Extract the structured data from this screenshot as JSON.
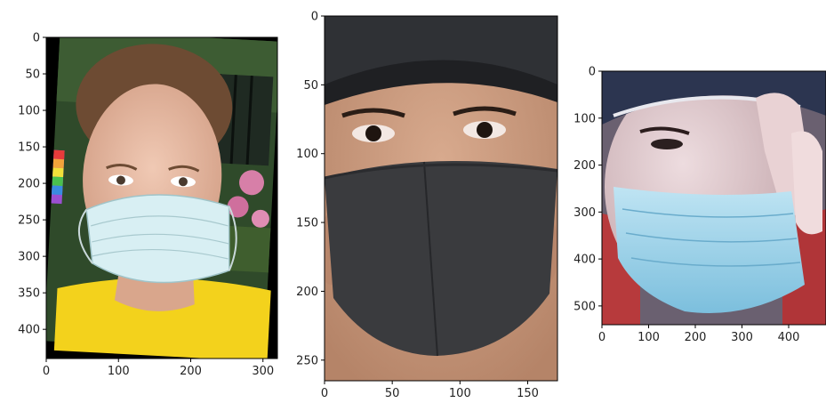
{
  "chart_data": [
    {
      "type": "image",
      "panel": "left",
      "xlim": [
        0,
        320
      ],
      "ylim": [
        440,
        0
      ],
      "xticks": [
        0,
        100,
        200,
        300
      ],
      "yticks": [
        0,
        50,
        100,
        150,
        200,
        250,
        300,
        350,
        400
      ],
      "image": {
        "description_colors": {
          "skin": "#e2b6a0",
          "hair": "#6b4a32",
          "mask": "#d6eef2",
          "shirt": "#f2d21a",
          "background": "#2e4a28",
          "border": "#000000"
        }
      }
    },
    {
      "type": "image",
      "panel": "middle",
      "xlim": [
        0,
        172
      ],
      "ylim": [
        265,
        0
      ],
      "xticks": [
        0,
        50,
        100,
        150
      ],
      "yticks": [
        0,
        50,
        100,
        150,
        200,
        250
      ],
      "image": {
        "description_colors": {
          "cap": "#2f3135",
          "skin": "#c89a7e",
          "mask": "#3a3b3e"
        }
      }
    },
    {
      "type": "image",
      "panel": "right",
      "xlim": [
        0,
        480
      ],
      "ylim": [
        540,
        0
      ],
      "xticks": [
        0,
        100,
        200,
        300,
        400
      ],
      "yticks": [
        0,
        100,
        200,
        300,
        400,
        500
      ],
      "image": {
        "description_colors": {
          "cap": "#2c3550",
          "skin": "#d9bfc2",
          "mask": "#9fd3ea",
          "jacket": "#b73a3c"
        }
      }
    }
  ]
}
